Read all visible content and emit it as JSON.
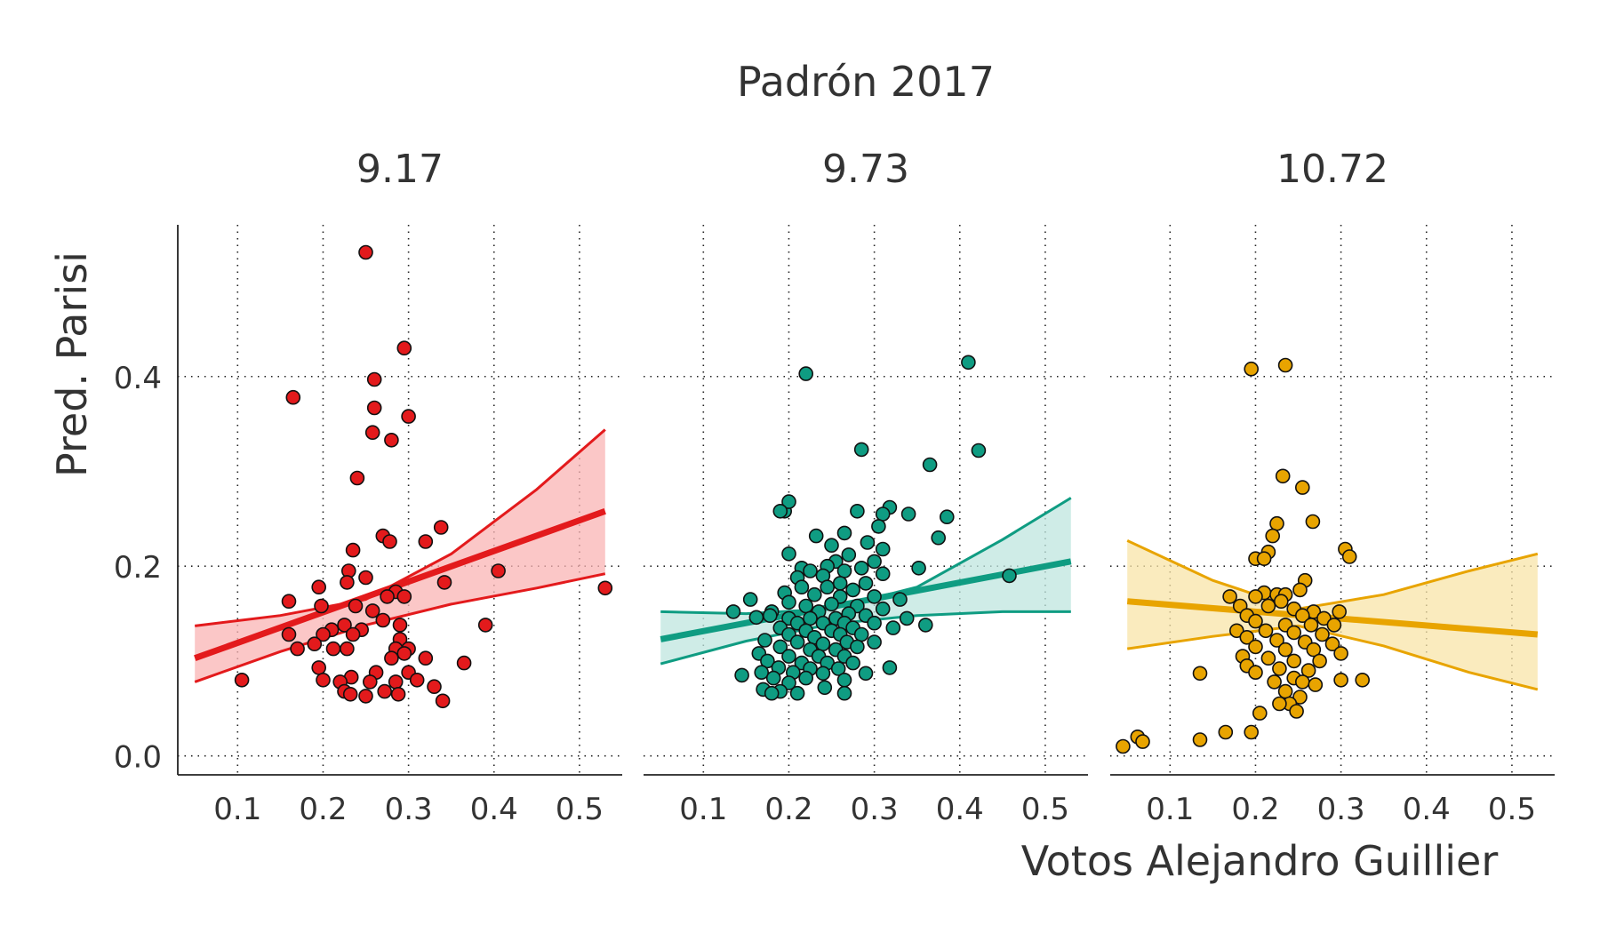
{
  "chart_data": {
    "type": "scatter",
    "super_title": "Padrón 2017",
    "xlabel": "Votos Alejandro Guillier",
    "ylabel": "Pred. Parisi",
    "xlim": [
      0.03,
      0.55
    ],
    "ylim": [
      -0.02,
      0.56
    ],
    "x_ticks": [
      0.1,
      0.2,
      0.3,
      0.4,
      0.5
    ],
    "x_tick_labels": [
      "0.1",
      "0.2",
      "0.3",
      "0.4",
      "0.5"
    ],
    "y_ticks": [
      0.0,
      0.2,
      0.4
    ],
    "y_tick_labels": [
      "0.0",
      "0.2",
      "0.4"
    ],
    "grid": true,
    "panels": [
      {
        "label": "9.17",
        "color": "#e31a1c",
        "band_color": "#f9b4b4",
        "fit": {
          "x": [
            0.05,
            0.53
          ],
          "y": [
            0.103,
            0.258
          ]
        },
        "band_upper": {
          "x": [
            0.05,
            0.15,
            0.25,
            0.35,
            0.45,
            0.53
          ],
          "y": [
            0.137,
            0.148,
            0.165,
            0.213,
            0.281,
            0.344
          ]
        },
        "band_lower": {
          "x": [
            0.05,
            0.15,
            0.25,
            0.35,
            0.45,
            0.53
          ],
          "y": [
            0.078,
            0.11,
            0.138,
            0.16,
            0.177,
            0.192
          ]
        },
        "points": [
          [
            0.25,
            0.531
          ],
          [
            0.295,
            0.43
          ],
          [
            0.26,
            0.397
          ],
          [
            0.165,
            0.378
          ],
          [
            0.26,
            0.367
          ],
          [
            0.3,
            0.358
          ],
          [
            0.258,
            0.341
          ],
          [
            0.28,
            0.333
          ],
          [
            0.24,
            0.293
          ],
          [
            0.27,
            0.232
          ],
          [
            0.338,
            0.241
          ],
          [
            0.278,
            0.226
          ],
          [
            0.32,
            0.226
          ],
          [
            0.235,
            0.217
          ],
          [
            0.405,
            0.195
          ],
          [
            0.23,
            0.195
          ],
          [
            0.25,
            0.188
          ],
          [
            0.228,
            0.183
          ],
          [
            0.195,
            0.178
          ],
          [
            0.342,
            0.183
          ],
          [
            0.285,
            0.173
          ],
          [
            0.295,
            0.168
          ],
          [
            0.275,
            0.168
          ],
          [
            0.16,
            0.163
          ],
          [
            0.198,
            0.158
          ],
          [
            0.238,
            0.158
          ],
          [
            0.258,
            0.153
          ],
          [
            0.27,
            0.143
          ],
          [
            0.21,
            0.133
          ],
          [
            0.225,
            0.138
          ],
          [
            0.245,
            0.133
          ],
          [
            0.29,
            0.138
          ],
          [
            0.39,
            0.138
          ],
          [
            0.16,
            0.128
          ],
          [
            0.2,
            0.128
          ],
          [
            0.235,
            0.128
          ],
          [
            0.29,
            0.123
          ],
          [
            0.19,
            0.118
          ],
          [
            0.228,
            0.113
          ],
          [
            0.17,
            0.113
          ],
          [
            0.212,
            0.113
          ],
          [
            0.285,
            0.113
          ],
          [
            0.3,
            0.113
          ],
          [
            0.295,
            0.108
          ],
          [
            0.28,
            0.103
          ],
          [
            0.32,
            0.103
          ],
          [
            0.365,
            0.098
          ],
          [
            0.195,
            0.093
          ],
          [
            0.262,
            0.088
          ],
          [
            0.3,
            0.088
          ],
          [
            0.233,
            0.083
          ],
          [
            0.105,
            0.08
          ],
          [
            0.2,
            0.08
          ],
          [
            0.22,
            0.078
          ],
          [
            0.255,
            0.078
          ],
          [
            0.285,
            0.078
          ],
          [
            0.31,
            0.08
          ],
          [
            0.33,
            0.073
          ],
          [
            0.225,
            0.068
          ],
          [
            0.232,
            0.065
          ],
          [
            0.25,
            0.063
          ],
          [
            0.272,
            0.068
          ],
          [
            0.288,
            0.065
          ],
          [
            0.34,
            0.058
          ],
          [
            0.53,
            0.177
          ]
        ]
      },
      {
        "label": "9.73",
        "color": "#0f9c82",
        "band_color": "#bfe6df",
        "fit": {
          "x": [
            0.05,
            0.53
          ],
          "y": [
            0.123,
            0.205
          ]
        },
        "band_upper": {
          "x": [
            0.05,
            0.15,
            0.25,
            0.35,
            0.45,
            0.53
          ],
          "y": [
            0.152,
            0.15,
            0.155,
            0.178,
            0.228,
            0.272
          ]
        },
        "band_lower": {
          "x": [
            0.05,
            0.15,
            0.25,
            0.35,
            0.45,
            0.53
          ],
          "y": [
            0.097,
            0.121,
            0.139,
            0.148,
            0.152,
            0.152
          ]
        },
        "points": [
          [
            0.22,
            0.403
          ],
          [
            0.41,
            0.415
          ],
          [
            0.285,
            0.323
          ],
          [
            0.422,
            0.322
          ],
          [
            0.365,
            0.307
          ],
          [
            0.195,
            0.258
          ],
          [
            0.2,
            0.268
          ],
          [
            0.19,
            0.258
          ],
          [
            0.28,
            0.258
          ],
          [
            0.318,
            0.262
          ],
          [
            0.31,
            0.255
          ],
          [
            0.34,
            0.255
          ],
          [
            0.385,
            0.252
          ],
          [
            0.305,
            0.242
          ],
          [
            0.265,
            0.235
          ],
          [
            0.232,
            0.232
          ],
          [
            0.375,
            0.23
          ],
          [
            0.292,
            0.225
          ],
          [
            0.25,
            0.222
          ],
          [
            0.31,
            0.218
          ],
          [
            0.2,
            0.213
          ],
          [
            0.27,
            0.212
          ],
          [
            0.255,
            0.205
          ],
          [
            0.3,
            0.205
          ],
          [
            0.215,
            0.198
          ],
          [
            0.245,
            0.2
          ],
          [
            0.225,
            0.195
          ],
          [
            0.265,
            0.195
          ],
          [
            0.285,
            0.198
          ],
          [
            0.352,
            0.198
          ],
          [
            0.31,
            0.192
          ],
          [
            0.24,
            0.19
          ],
          [
            0.21,
            0.188
          ],
          [
            0.26,
            0.182
          ],
          [
            0.29,
            0.182
          ],
          [
            0.458,
            0.19
          ],
          [
            0.215,
            0.178
          ],
          [
            0.245,
            0.178
          ],
          [
            0.275,
            0.175
          ],
          [
            0.195,
            0.172
          ],
          [
            0.23,
            0.17
          ],
          [
            0.26,
            0.168
          ],
          [
            0.3,
            0.168
          ],
          [
            0.33,
            0.165
          ],
          [
            0.155,
            0.165
          ],
          [
            0.2,
            0.162
          ],
          [
            0.22,
            0.158
          ],
          [
            0.25,
            0.16
          ],
          [
            0.28,
            0.158
          ],
          [
            0.31,
            0.155
          ],
          [
            0.18,
            0.152
          ],
          [
            0.235,
            0.152
          ],
          [
            0.27,
            0.15
          ],
          [
            0.135,
            0.152
          ],
          [
            0.162,
            0.146
          ],
          [
            0.2,
            0.145
          ],
          [
            0.225,
            0.145
          ],
          [
            0.255,
            0.145
          ],
          [
            0.29,
            0.148
          ],
          [
            0.338,
            0.145
          ],
          [
            0.178,
            0.148
          ],
          [
            0.21,
            0.14
          ],
          [
            0.24,
            0.14
          ],
          [
            0.265,
            0.14
          ],
          [
            0.3,
            0.14
          ],
          [
            0.19,
            0.135
          ],
          [
            0.22,
            0.132
          ],
          [
            0.25,
            0.132
          ],
          [
            0.275,
            0.135
          ],
          [
            0.322,
            0.135
          ],
          [
            0.36,
            0.138
          ],
          [
            0.2,
            0.128
          ],
          [
            0.23,
            0.125
          ],
          [
            0.26,
            0.128
          ],
          [
            0.285,
            0.128
          ],
          [
            0.172,
            0.122
          ],
          [
            0.21,
            0.12
          ],
          [
            0.24,
            0.118
          ],
          [
            0.268,
            0.12
          ],
          [
            0.3,
            0.12
          ],
          [
            0.19,
            0.115
          ],
          [
            0.225,
            0.112
          ],
          [
            0.255,
            0.112
          ],
          [
            0.28,
            0.115
          ],
          [
            0.165,
            0.108
          ],
          [
            0.2,
            0.105
          ],
          [
            0.235,
            0.105
          ],
          [
            0.265,
            0.105
          ],
          [
            0.175,
            0.1
          ],
          [
            0.215,
            0.098
          ],
          [
            0.245,
            0.098
          ],
          [
            0.275,
            0.098
          ],
          [
            0.188,
            0.093
          ],
          [
            0.225,
            0.092
          ],
          [
            0.258,
            0.092
          ],
          [
            0.318,
            0.093
          ],
          [
            0.168,
            0.088
          ],
          [
            0.205,
            0.088
          ],
          [
            0.24,
            0.087
          ],
          [
            0.29,
            0.087
          ],
          [
            0.145,
            0.085
          ],
          [
            0.182,
            0.082
          ],
          [
            0.22,
            0.082
          ],
          [
            0.265,
            0.08
          ],
          [
            0.2,
            0.077
          ],
          [
            0.242,
            0.072
          ],
          [
            0.17,
            0.07
          ],
          [
            0.19,
            0.068
          ],
          [
            0.21,
            0.066
          ],
          [
            0.18,
            0.066
          ],
          [
            0.265,
            0.066
          ]
        ]
      },
      {
        "label": "10.72",
        "color": "#e8a400",
        "band_color": "#f8e4a8",
        "fit": {
          "x": [
            0.05,
            0.53
          ],
          "y": [
            0.163,
            0.128
          ]
        },
        "band_upper": {
          "x": [
            0.05,
            0.15,
            0.25,
            0.35,
            0.45,
            0.53
          ],
          "y": [
            0.227,
            0.185,
            0.155,
            0.17,
            0.195,
            0.213
          ]
        },
        "band_lower": {
          "x": [
            0.05,
            0.15,
            0.25,
            0.35,
            0.45,
            0.53
          ],
          "y": [
            0.113,
            0.126,
            0.137,
            0.116,
            0.088,
            0.07
          ]
        },
        "points": [
          [
            0.195,
            0.408
          ],
          [
            0.235,
            0.412
          ],
          [
            0.232,
            0.295
          ],
          [
            0.255,
            0.283
          ],
          [
            0.267,
            0.247
          ],
          [
            0.225,
            0.245
          ],
          [
            0.22,
            0.232
          ],
          [
            0.215,
            0.215
          ],
          [
            0.2,
            0.208
          ],
          [
            0.21,
            0.208
          ],
          [
            0.305,
            0.218
          ],
          [
            0.31,
            0.21
          ],
          [
            0.258,
            0.185
          ],
          [
            0.252,
            0.175
          ],
          [
            0.21,
            0.172
          ],
          [
            0.225,
            0.17
          ],
          [
            0.235,
            0.17
          ],
          [
            0.17,
            0.168
          ],
          [
            0.2,
            0.168
          ],
          [
            0.23,
            0.163
          ],
          [
            0.182,
            0.158
          ],
          [
            0.215,
            0.158
          ],
          [
            0.245,
            0.155
          ],
          [
            0.268,
            0.152
          ],
          [
            0.298,
            0.152
          ],
          [
            0.19,
            0.148
          ],
          [
            0.255,
            0.148
          ],
          [
            0.28,
            0.145
          ],
          [
            0.2,
            0.142
          ],
          [
            0.235,
            0.138
          ],
          [
            0.265,
            0.138
          ],
          [
            0.292,
            0.138
          ],
          [
            0.178,
            0.132
          ],
          [
            0.212,
            0.132
          ],
          [
            0.245,
            0.13
          ],
          [
            0.278,
            0.128
          ],
          [
            0.19,
            0.125
          ],
          [
            0.225,
            0.122
          ],
          [
            0.258,
            0.12
          ],
          [
            0.29,
            0.118
          ],
          [
            0.2,
            0.115
          ],
          [
            0.235,
            0.112
          ],
          [
            0.268,
            0.112
          ],
          [
            0.3,
            0.108
          ],
          [
            0.185,
            0.105
          ],
          [
            0.215,
            0.103
          ],
          [
            0.245,
            0.1
          ],
          [
            0.275,
            0.1
          ],
          [
            0.19,
            0.095
          ],
          [
            0.228,
            0.092
          ],
          [
            0.262,
            0.09
          ],
          [
            0.2,
            0.088
          ],
          [
            0.245,
            0.082
          ],
          [
            0.135,
            0.087
          ],
          [
            0.222,
            0.078
          ],
          [
            0.255,
            0.078
          ],
          [
            0.3,
            0.08
          ],
          [
            0.325,
            0.08
          ],
          [
            0.27,
            0.075
          ],
          [
            0.235,
            0.068
          ],
          [
            0.252,
            0.062
          ],
          [
            0.24,
            0.055
          ],
          [
            0.228,
            0.055
          ],
          [
            0.248,
            0.047
          ],
          [
            0.205,
            0.045
          ],
          [
            0.195,
            0.025
          ],
          [
            0.165,
            0.025
          ],
          [
            0.135,
            0.017
          ],
          [
            0.062,
            0.02
          ],
          [
            0.068,
            0.015
          ],
          [
            0.045,
            0.01
          ]
        ]
      }
    ]
  }
}
